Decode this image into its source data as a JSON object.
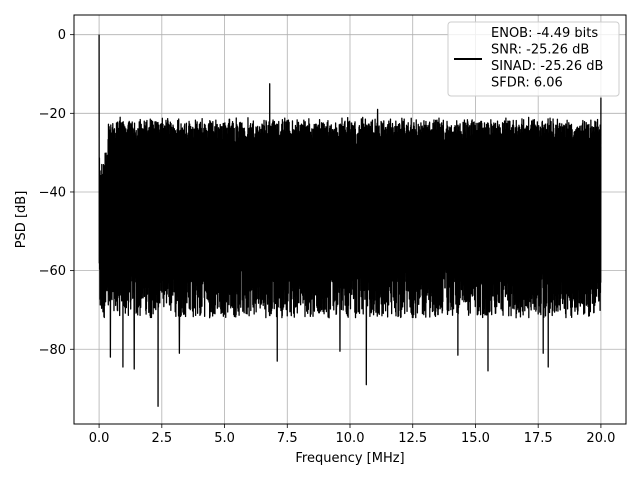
{
  "chart_data": {
    "type": "line",
    "title": "",
    "xlabel": "Frequency [MHz]",
    "ylabel": "PSD [dB]",
    "xlim": [
      -1.0,
      21.0
    ],
    "ylim": [
      -99.0,
      5.0
    ],
    "xticks": [
      0.0,
      2.5,
      5.0,
      7.5,
      10.0,
      12.5,
      15.0,
      17.5,
      20.0
    ],
    "xtick_labels": [
      "0.0",
      "2.5",
      "5.0",
      "7.5",
      "10.0",
      "12.5",
      "15.0",
      "17.5",
      "20.0"
    ],
    "yticks": [
      0,
      -20,
      -40,
      -60,
      -80
    ],
    "ytick_labels": [
      "0",
      "−20",
      "−40",
      "−60",
      "−80"
    ],
    "grid": true,
    "legend_position": "top-right",
    "series": [
      {
        "name": "ENOB: -4.49 bits\nSNR: -25.26 dB\nSINAD: -25.26 dB\nSFDR: 6.06",
        "color": "#000000",
        "x_range": [
          0.0,
          20.0
        ],
        "upper_envelope_db": -25,
        "lower_envelope_db": -65,
        "peaks": [
          {
            "x": 0.0,
            "y": 0.0
          },
          {
            "x": 1.15,
            "y": -24.5
          },
          {
            "x": 1.65,
            "y": -23.5
          },
          {
            "x": 6.8,
            "y": -12.5
          },
          {
            "x": 11.1,
            "y": -19.0
          },
          {
            "x": 20.0,
            "y": -16.0
          }
        ],
        "dips": [
          {
            "x": 0.45,
            "y": -82.0
          },
          {
            "x": 0.95,
            "y": -84.5
          },
          {
            "x": 1.4,
            "y": -85.0
          },
          {
            "x": 2.35,
            "y": -94.5
          },
          {
            "x": 3.2,
            "y": -81.0
          },
          {
            "x": 7.1,
            "y": -83.0
          },
          {
            "x": 9.6,
            "y": -80.5
          },
          {
            "x": 10.65,
            "y": -89.0
          },
          {
            "x": 14.3,
            "y": -81.5
          },
          {
            "x": 15.5,
            "y": -85.5
          },
          {
            "x": 17.7,
            "y": -81.0
          },
          {
            "x": 17.9,
            "y": -84.5
          }
        ]
      }
    ],
    "legend_lines": [
      "ENOB: -4.49 bits",
      "SNR: -25.26 dB",
      "SINAD: -25.26 dB",
      "SFDR: 6.06"
    ]
  }
}
